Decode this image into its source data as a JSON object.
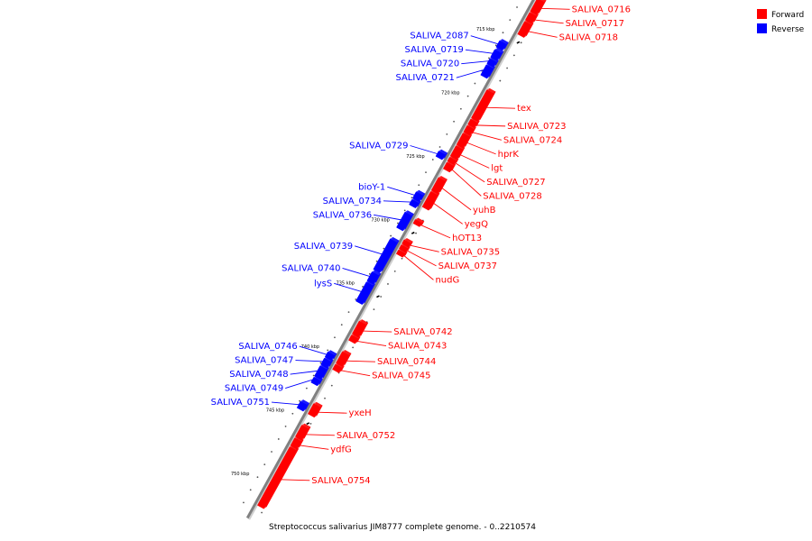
{
  "caption": "Streptococcus salivarius JIM8777 complete genome. - 0..2210574",
  "legend": {
    "placement": "top-right",
    "items": [
      {
        "label": "Forward",
        "color": "#ff0000"
      },
      {
        "label": "Reverse",
        "color": "#0000ff"
      }
    ]
  },
  "colors": {
    "forward": "#ff0000",
    "reverse": "#0000ff",
    "backbone": "#808080"
  },
  "ticks": [
    {
      "kbp": 715,
      "label": "715 kbp"
    },
    {
      "kbp": 720,
      "label": "720 kbp"
    },
    {
      "kbp": 725,
      "label": "725 kbp"
    },
    {
      "kbp": 730,
      "label": "730 kbp"
    },
    {
      "kbp": 735,
      "label": "735 kbp"
    },
    {
      "kbp": 740,
      "label": "740 kbp"
    },
    {
      "kbp": 745,
      "label": "745 kbp"
    },
    {
      "kbp": 750,
      "label": "750 kbp"
    }
  ],
  "genes": [
    {
      "name": "SALIVA_0716",
      "strand": "forward",
      "start_kbp": 711.8,
      "end_kbp": 712.8
    },
    {
      "name": "SALIVA_0717",
      "strand": "forward",
      "start_kbp": 712.9,
      "end_kbp": 713.5
    },
    {
      "name": "SALIVA_0718",
      "strand": "forward",
      "start_kbp": 713.6,
      "end_kbp": 714.6
    },
    {
      "name": "SALIVA_2087",
      "strand": "reverse",
      "start_kbp": 715.6,
      "end_kbp": 716.1
    },
    {
      "name": "SALIVA_0719",
      "strand": "reverse",
      "start_kbp": 716.3,
      "end_kbp": 716.9
    },
    {
      "name": "SALIVA_0720",
      "strand": "reverse",
      "start_kbp": 717.0,
      "end_kbp": 717.4
    },
    {
      "name": "SALIVA_0721",
      "strand": "reverse",
      "start_kbp": 717.5,
      "end_kbp": 718.3
    },
    {
      "name": "tex",
      "strand": "forward",
      "start_kbp": 719.0,
      "end_kbp": 721.2
    },
    {
      "name": "SALIVA_0723",
      "strand": "forward",
      "start_kbp": 721.3,
      "end_kbp": 721.7
    },
    {
      "name": "SALIVA_0724",
      "strand": "forward",
      "start_kbp": 721.8,
      "end_kbp": 722.3
    },
    {
      "name": "hprK",
      "strand": "forward",
      "start_kbp": 722.4,
      "end_kbp": 723.3
    },
    {
      "name": "lgt",
      "strand": "forward",
      "start_kbp": 723.4,
      "end_kbp": 724.2
    },
    {
      "name": "SALIVA_0727",
      "strand": "forward",
      "start_kbp": 724.3,
      "end_kbp": 724.6
    },
    {
      "name": "SALIVA_0729",
      "strand": "reverse",
      "start_kbp": 724.3,
      "end_kbp": 724.7
    },
    {
      "name": "SALIVA_0728",
      "strand": "forward",
      "start_kbp": 724.7,
      "end_kbp": 725.2
    },
    {
      "name": "yuhB",
      "strand": "forward",
      "start_kbp": 725.9,
      "end_kbp": 726.9
    },
    {
      "name": "yegQ",
      "strand": "forward",
      "start_kbp": 727.0,
      "end_kbp": 728.2
    },
    {
      "name": "bioY-1",
      "strand": "reverse",
      "start_kbp": 727.5,
      "end_kbp": 728.0
    },
    {
      "name": "SALIVA_0734",
      "strand": "reverse",
      "start_kbp": 728.1,
      "end_kbp": 728.5
    },
    {
      "name": "hOT13",
      "strand": "forward",
      "start_kbp": 729.2,
      "end_kbp": 729.5
    },
    {
      "name": "SALIVA_0736",
      "strand": "reverse",
      "start_kbp": 729.1,
      "end_kbp": 730.3
    },
    {
      "name": "SALIVA_0735",
      "strand": "forward",
      "start_kbp": 730.8,
      "end_kbp": 731.1
    },
    {
      "name": "SALIVA_0737",
      "strand": "forward",
      "start_kbp": 731.2,
      "end_kbp": 731.5
    },
    {
      "name": "nudG",
      "strand": "forward",
      "start_kbp": 731.6,
      "end_kbp": 731.9
    },
    {
      "name": "SALIVA_0739",
      "strand": "reverse",
      "start_kbp": 731.2,
      "end_kbp": 733.6
    },
    {
      "name": "SALIVA_0740",
      "strand": "reverse",
      "start_kbp": 733.8,
      "end_kbp": 734.5
    },
    {
      "name": "lysS",
      "strand": "reverse",
      "start_kbp": 734.6,
      "end_kbp": 736.1
    },
    {
      "name": "SALIVA_0742",
      "strand": "forward",
      "start_kbp": 737.2,
      "end_kbp": 738.2
    },
    {
      "name": "SALIVA_0743",
      "strand": "forward",
      "start_kbp": 738.3,
      "end_kbp": 738.7
    },
    {
      "name": "SALIVA_0744",
      "strand": "forward",
      "start_kbp": 739.6,
      "end_kbp": 740.5
    },
    {
      "name": "SALIVA_0745",
      "strand": "forward",
      "start_kbp": 740.6,
      "end_kbp": 741.0
    },
    {
      "name": "SALIVA_0746",
      "strand": "reverse",
      "start_kbp": 740.1,
      "end_kbp": 740.5
    },
    {
      "name": "SALIVA_0747",
      "strand": "reverse",
      "start_kbp": 740.6,
      "end_kbp": 741.1
    },
    {
      "name": "SALIVA_0748",
      "strand": "reverse",
      "start_kbp": 741.2,
      "end_kbp": 742.0
    },
    {
      "name": "SALIVA_0749",
      "strand": "reverse",
      "start_kbp": 742.1,
      "end_kbp": 742.5
    },
    {
      "name": "SALIVA_0751",
      "strand": "reverse",
      "start_kbp": 744.0,
      "end_kbp": 744.5
    },
    {
      "name": "yxeH",
      "strand": "forward",
      "start_kbp": 743.7,
      "end_kbp": 744.5
    },
    {
      "name": "SALIVA_0752",
      "strand": "forward",
      "start_kbp": 745.4,
      "end_kbp": 746.3
    },
    {
      "name": "ydfG",
      "strand": "forward",
      "start_kbp": 746.4,
      "end_kbp": 747.0
    },
    {
      "name": "SALIVA_0754",
      "strand": "forward",
      "start_kbp": 747.1,
      "end_kbp": 751.7
    }
  ]
}
